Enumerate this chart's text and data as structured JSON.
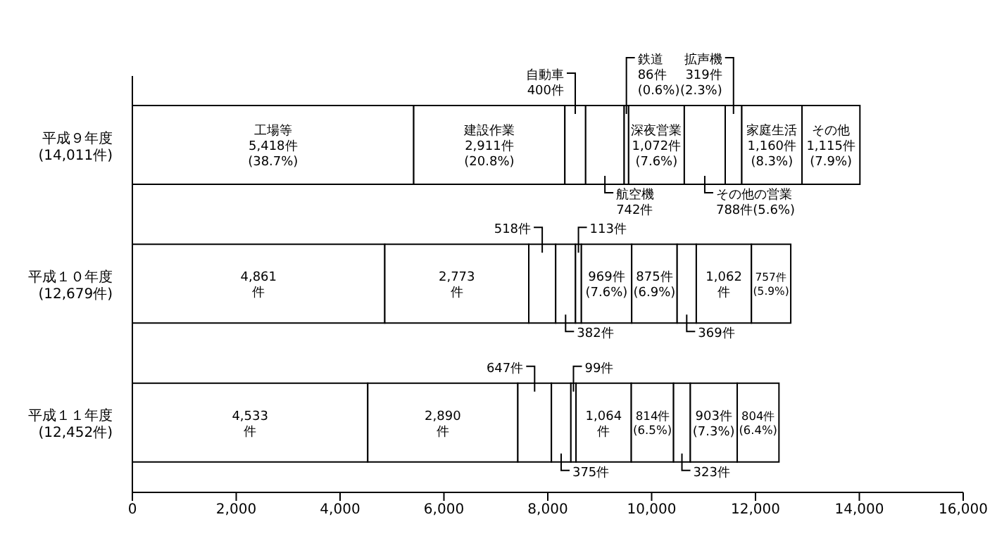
{
  "chart_data": {
    "type": "bar",
    "orientation": "horizontal",
    "stacked": true,
    "categories": [
      "平成９年度\n(14,011件)",
      "平成１０年度\n(12,679件)",
      "平成１１年度\n(12,452件)"
    ],
    "series": [
      {
        "name": "工場等",
        "color": "#ffffff",
        "values": [
          5418,
          4861,
          4533
        ],
        "value_labels": [
          "5,418件\n(38.7%)",
          "4,861\n件",
          "4,533\n件"
        ]
      },
      {
        "name": "建設作業",
        "color": "#ffffff",
        "values": [
          2911,
          2773,
          2890
        ],
        "value_labels": [
          "2,911件\n(20.8%)",
          "2,773\n件",
          "2,890\n件"
        ]
      },
      {
        "name": "自動車",
        "color": "#ffffff",
        "values": [
          400,
          518,
          647
        ],
        "value_labels": [
          "400件",
          "518件",
          "647件"
        ]
      },
      {
        "name": "航空機",
        "color": "#ffffff",
        "values": [
          742,
          382,
          375
        ],
        "value_labels": [
          "742件",
          "382件",
          "375件"
        ]
      },
      {
        "name": "鉄道",
        "color": "#ffffff",
        "values": [
          86,
          113,
          99
        ],
        "value_labels": [
          "86件\n(0.6%)",
          "113件",
          "99件"
        ]
      },
      {
        "name": "深夜営業",
        "color": "#ffffff",
        "values": [
          1072,
          969,
          1064
        ],
        "value_labels": [
          "1,072件\n(7.6%)",
          "969件\n(7.6%)",
          "1,064\n件"
        ]
      },
      {
        "name": "その他の営業",
        "color": "#ffffff",
        "values": [
          788,
          875,
          814
        ],
        "value_labels": [
          "788件(5.6%)",
          "875件\n(6.9%)",
          "814件\n(6.5%)"
        ]
      },
      {
        "name": "拡声機",
        "color": "#ffffff",
        "values": [
          319,
          369,
          323
        ],
        "value_labels": [
          "319件\n(2.3%)",
          "369件",
          "323件"
        ]
      },
      {
        "name": "家庭生活",
        "color": "#ffffff",
        "values": [
          1160,
          1062,
          903
        ],
        "value_labels": [
          "1,160件\n(8.3%)",
          "1,062\n件",
          "903件\n(7.3%)"
        ]
      },
      {
        "name": "その他",
        "color": "#ffffff",
        "values": [
          1115,
          757,
          804
        ],
        "value_labels": [
          "1,115件\n(7.9%)",
          "757件\n(5.9%)",
          "804件\n(6.4%)"
        ]
      }
    ],
    "xlim": [
      0,
      16000
    ],
    "xticks": [
      0,
      {
        "value": 2000,
        "label": "2,000"
      },
      {
        "value": 4000,
        "label": "4,000"
      },
      {
        "value": 6000,
        "label": "6,000"
      },
      {
        "value": 8000,
        "label": "8,000"
      },
      {
        "value": 10000,
        "label": "10,000"
      },
      {
        "value": 12000,
        "label": "12,000"
      },
      {
        "value": 14000,
        "label": "14,000"
      },
      {
        "value": 16000,
        "label": "16,000"
      }
    ]
  }
}
